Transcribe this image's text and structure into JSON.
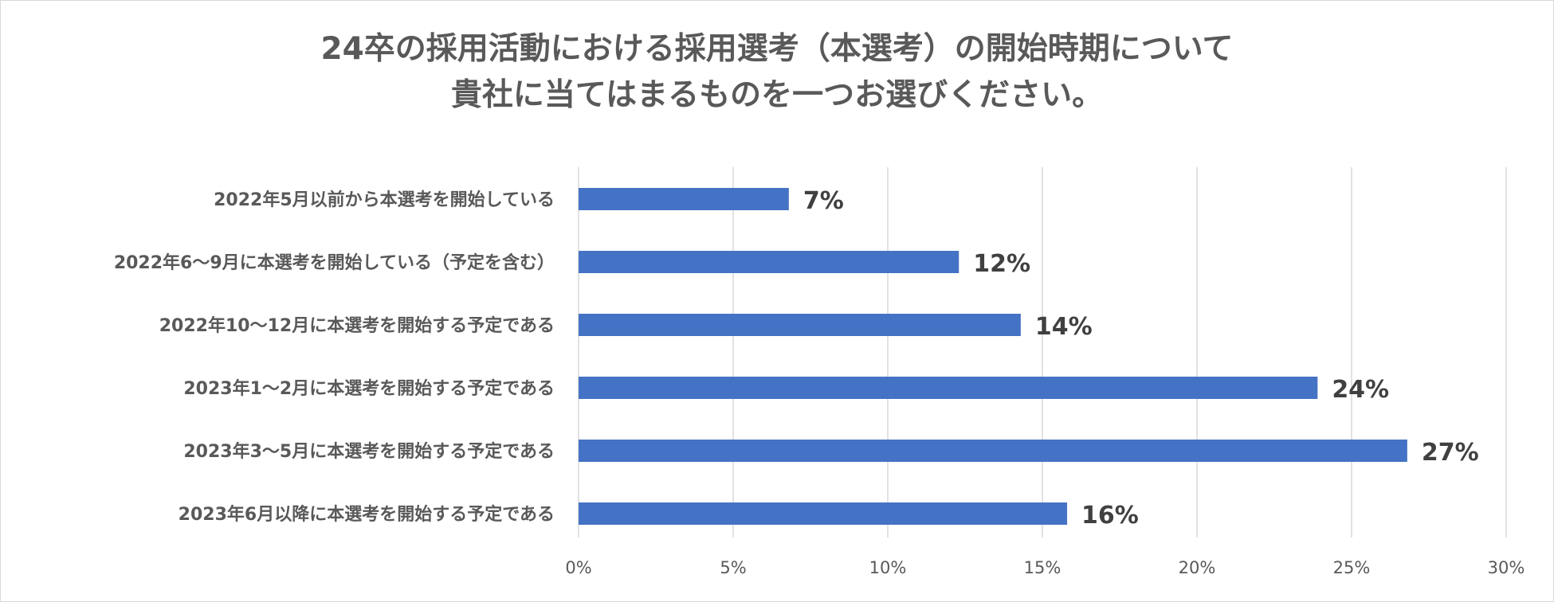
{
  "chart_data": {
    "type": "bar",
    "orientation": "horizontal",
    "title_lines": [
      "24卒の採用活動における採用選考（本選考）の開始時期について",
      "貴社に当てはまるものを一つお選びください。"
    ],
    "categories": [
      "2022年5月以前から本選考を開始している",
      "2022年6〜9月に本選考を開始している（予定を含む）",
      "2022年10〜12月に本選考を開始する予定である",
      "2023年1〜2月に本選考を開始する予定である",
      "2023年3〜5月に本選考を開始する予定である",
      "2023年6月以降に本選考を開始する予定である"
    ],
    "values": [
      6.8,
      12.3,
      14.3,
      23.9,
      26.8,
      15.8
    ],
    "data_labels": [
      "7%",
      "12%",
      "14%",
      "24%",
      "27%",
      "16%"
    ],
    "xlim": [
      0,
      30
    ],
    "ticks": [
      "0%",
      "5%",
      "10%",
      "15%",
      "20%",
      "25%",
      "30%"
    ],
    "grid": true,
    "bar_color": "#4472c4"
  }
}
